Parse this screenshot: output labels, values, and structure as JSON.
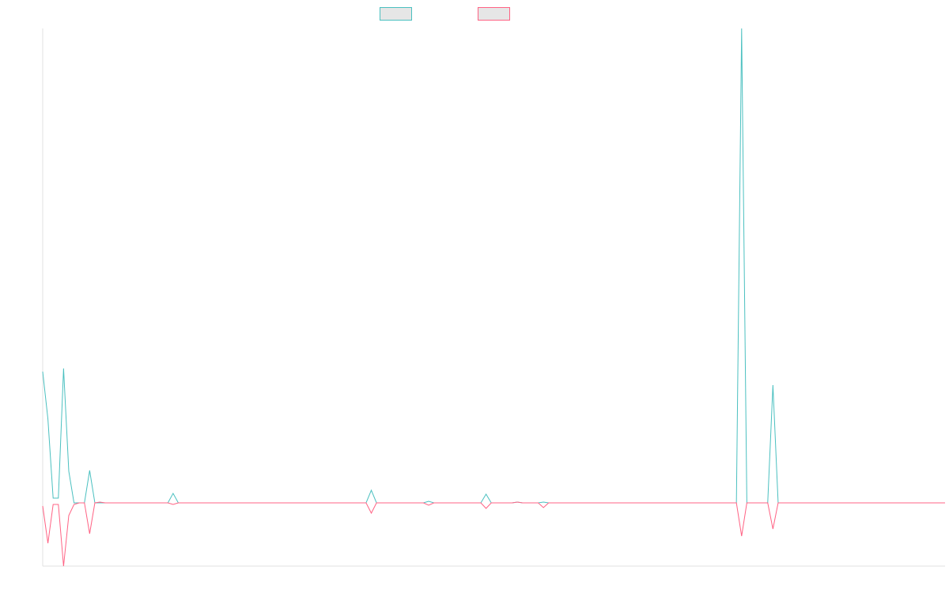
{
  "chart_data": {
    "type": "line",
    "categories": [
      null,
      null,
      null,
      null,
      null,
      null,
      null,
      null,
      null,
      null,
      null,
      null,
      null,
      null,
      null,
      null,
      null,
      null,
      null,
      null,
      null,
      null,
      null,
      null,
      null,
      null,
      null,
      null,
      null,
      null,
      null,
      null,
      null,
      null,
      null,
      null,
      null,
      null,
      null,
      null,
      null,
      null,
      null,
      null,
      null,
      null,
      null,
      null,
      null,
      null,
      null,
      null,
      null,
      null,
      null,
      null,
      null,
      null,
      null,
      null,
      null,
      null,
      null,
      null,
      null,
      null,
      null,
      null,
      null,
      null,
      null,
      null,
      null,
      null,
      null,
      null,
      null,
      null,
      null,
      null,
      null,
      null,
      null,
      null,
      null,
      null,
      null,
      null,
      null,
      null,
      null,
      null,
      null,
      null,
      null,
      null,
      null,
      null,
      null,
      null,
      null,
      null,
      null,
      null,
      null,
      null,
      null,
      null,
      null,
      null,
      null,
      null,
      null,
      null,
      null,
      null,
      null,
      null,
      null,
      null,
      null,
      null,
      null,
      null,
      null,
      null,
      null,
      null,
      null,
      null,
      null,
      null,
      null,
      null,
      null,
      null,
      null,
      null,
      null,
      null,
      null,
      null,
      null,
      null,
      null,
      null,
      null,
      null,
      null,
      null,
      null,
      null,
      null,
      null,
      null,
      null,
      null,
      null,
      null,
      null,
      null,
      null,
      null,
      null,
      null,
      null,
      null,
      null,
      null,
      null,
      null,
      null,
      null,
      null
    ],
    "series": [
      {
        "color": "#4bc0c0",
        "values": [
          166,
          106,
          6,
          6,
          170,
          40,
          0,
          0,
          0,
          41,
          0,
          0,
          0,
          0,
          0,
          0,
          0,
          0,
          0,
          0,
          0,
          0,
          0,
          0,
          0,
          12,
          0,
          0,
          0,
          0,
          0,
          0,
          0,
          0,
          0,
          0,
          0,
          0,
          0,
          0,
          0,
          0,
          0,
          0,
          0,
          0,
          0,
          0,
          0,
          0,
          0,
          0,
          0,
          0,
          0,
          0,
          0,
          0,
          0,
          0,
          0,
          0,
          0,
          16,
          0,
          0,
          0,
          0,
          0,
          0,
          0,
          0,
          0,
          0,
          2,
          0,
          0,
          0,
          0,
          0,
          0,
          0,
          0,
          0,
          0,
          11,
          0,
          0,
          0,
          0,
          0,
          1,
          0,
          0,
          0,
          0,
          1,
          0,
          0,
          0,
          0,
          0,
          0,
          0,
          0,
          0,
          0,
          0,
          0,
          0,
          0,
          0,
          0,
          0,
          0,
          0,
          0,
          0,
          0,
          0,
          0,
          0,
          0,
          0,
          0,
          0,
          0,
          0,
          0,
          0,
          0,
          0,
          0,
          0,
          600,
          0,
          0,
          0,
          0,
          0,
          149,
          0,
          0,
          0,
          0,
          0,
          0,
          0,
          0,
          0,
          0,
          0,
          0,
          0,
          0,
          0,
          0,
          0,
          0,
          0,
          0,
          0,
          0,
          0,
          0,
          0,
          0,
          0,
          0,
          0,
          0,
          0,
          0,
          0
        ]
      },
      {
        "color": "#ff6384",
        "values": [
          -4,
          -51,
          -2,
          -2,
          -80,
          -16,
          -2,
          0,
          0,
          -39,
          0,
          1,
          0,
          0,
          0,
          0,
          0,
          0,
          0,
          0,
          0,
          0,
          0,
          0,
          0,
          -2,
          0,
          0,
          0,
          0,
          0,
          0,
          0,
          0,
          0,
          0,
          0,
          0,
          0,
          0,
          0,
          0,
          0,
          0,
          0,
          0,
          0,
          0,
          0,
          0,
          0,
          0,
          0,
          0,
          0,
          0,
          0,
          0,
          0,
          0,
          0,
          0,
          0,
          -13,
          0,
          0,
          0,
          0,
          0,
          0,
          0,
          0,
          0,
          0,
          -3,
          0,
          0,
          0,
          0,
          0,
          0,
          0,
          0,
          0,
          0,
          -7,
          0,
          0,
          0,
          0,
          0,
          1,
          0,
          0,
          0,
          0,
          -6,
          0,
          0,
          0,
          0,
          0,
          0,
          0,
          0,
          0,
          0,
          0,
          0,
          0,
          0,
          0,
          0,
          0,
          0,
          0,
          0,
          0,
          0,
          0,
          0,
          0,
          0,
          0,
          0,
          0,
          0,
          0,
          0,
          0,
          0,
          0,
          0,
          0,
          -42,
          0,
          0,
          0,
          0,
          0,
          -33,
          0,
          0,
          0,
          0,
          0,
          0,
          0,
          0,
          0,
          0,
          0,
          0,
          0,
          0,
          0,
          0,
          0,
          0,
          0,
          0,
          0,
          0,
          0,
          0,
          0,
          0,
          0,
          0,
          0,
          0,
          0,
          0,
          0
        ]
      }
    ],
    "ylim": [
      -80,
      600
    ],
    "legend": "top"
  }
}
